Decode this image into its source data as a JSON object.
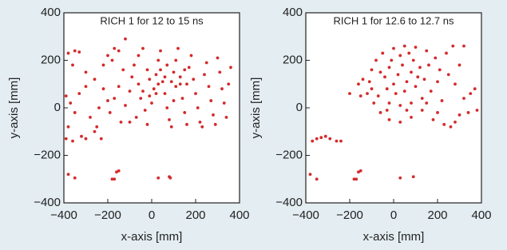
{
  "chart_data": [
    {
      "type": "scatter",
      "title": "RICH 1 for 12 to 15 ns",
      "x_label": "x-axis [mm]",
      "y_label": "y-axis [mm]",
      "color": "#d42a2a",
      "xlim": [
        -400,
        400
      ],
      "ylim": [
        -400,
        400
      ],
      "xticks": [
        {
          "value": -400,
          "label": "−400"
        },
        {
          "value": -200,
          "label": "−200"
        },
        0,
        200,
        400
      ],
      "yticks": [
        {
          "value": -400,
          "label": "−400"
        },
        {
          "value": -200,
          "label": "−200"
        },
        0,
        200,
        400
      ],
      "x": [
        -380,
        -350,
        -330,
        -360,
        -300,
        -390,
        -370,
        -350,
        -380,
        -390,
        -360,
        -320,
        -300,
        -260,
        -230,
        -250,
        -280,
        -240,
        -200,
        -220,
        -260,
        -300,
        -330,
        -220,
        -180,
        -200,
        -170,
        -150,
        -120,
        -130,
        -150,
        -170,
        -190,
        -140,
        -120,
        -100,
        -90,
        -80,
        -60,
        -40,
        -60,
        -50,
        -30,
        -70,
        -100,
        -20,
        0,
        10,
        20,
        30,
        40,
        50,
        60,
        70,
        80,
        90,
        100,
        110,
        120,
        130,
        140,
        150,
        160,
        170,
        180,
        190,
        200,
        210,
        220,
        230,
        240,
        250,
        260,
        270,
        280,
        290,
        300,
        310,
        320,
        330,
        340,
        350,
        360,
        -20,
        -10,
        30,
        40,
        60,
        70,
        90,
        110,
        130,
        150,
        160,
        -40,
        -10,
        20,
        100,
        -380,
        -350,
        -180,
        -160,
        -150,
        -170,
        30,
        80,
        85
      ],
      "values": [
        230,
        240,
        235,
        180,
        150,
        50,
        20,
        -20,
        -80,
        -130,
        -140,
        -120,
        -130,
        -100,
        -130,
        -80,
        -40,
        0,
        30,
        80,
        120,
        90,
        60,
        180,
        200,
        220,
        250,
        240,
        290,
        160,
        90,
        40,
        -20,
        -60,
        10,
        70,
        130,
        180,
        220,
        250,
        100,
        40,
        -10,
        -40,
        -60,
        -70,
        20,
        80,
        140,
        200,
        240,
        110,
        60,
        0,
        -50,
        -80,
        150,
        200,
        250,
        100,
        40,
        -20,
        -70,
        170,
        220,
        120,
        60,
        0,
        -60,
        -80,
        140,
        190,
        90,
        30,
        -30,
        -70,
        210,
        150,
        80,
        20,
        -40,
        100,
        170,
        160,
        120,
        100,
        160,
        130,
        180,
        110,
        90,
        130,
        160,
        100,
        70,
        50,
        60,
        30,
        -280,
        -295,
        -300,
        -270,
        -265,
        -300,
        -295,
        -290,
        -295
      ]
    },
    {
      "type": "scatter",
      "title": "RICH 1 for 12.6 to 12.7 ns",
      "x_label": "x-axis [mm]",
      "y_label": "y-axis [mm]",
      "color": "#d42a2a",
      "xlim": [
        -400,
        400
      ],
      "ylim": [
        -400,
        400
      ],
      "xticks": [
        {
          "value": -400,
          "label": "−400"
        },
        {
          "value": -200,
          "label": "−200"
        },
        0,
        200,
        400
      ],
      "yticks": [
        {
          "value": -400,
          "label": "−400"
        },
        {
          "value": -200,
          "label": "−200"
        },
        0,
        200,
        400
      ],
      "x": [
        -370,
        -350,
        -330,
        -310,
        -290,
        -260,
        -240,
        -380,
        -350,
        -180,
        -160,
        -150,
        -170,
        30,
        90,
        -110,
        -100,
        -80,
        -50,
        0,
        50,
        100,
        150,
        190,
        210,
        200,
        170,
        130,
        80,
        30,
        -20,
        -70,
        -100,
        -120,
        -90,
        -40,
        -20,
        0,
        20,
        40,
        60,
        80,
        100,
        120,
        140,
        -30,
        10,
        50,
        90,
        110,
        30,
        -60,
        160,
        70,
        -10,
        -160,
        -150,
        -60,
        -20,
        30,
        80,
        130,
        180,
        230,
        260,
        280,
        300,
        320,
        340,
        350,
        280,
        250,
        300,
        240,
        320,
        270,
        -30,
        60,
        150,
        220,
        380,
        370,
        -200,
        -140,
        200
      ],
      "values": [
        -140,
        -130,
        -125,
        -120,
        -130,
        -140,
        -140,
        -280,
        -300,
        -300,
        -270,
        -265,
        -300,
        -295,
        -290,
        110,
        160,
        200,
        230,
        250,
        260,
        255,
        240,
        210,
        160,
        110,
        70,
        40,
        20,
        10,
        20,
        50,
        80,
        60,
        20,
        130,
        170,
        100,
        140,
        180,
        110,
        150,
        90,
        170,
        120,
        80,
        60,
        70,
        200,
        130,
        220,
        150,
        180,
        230,
        200,
        100,
        50,
        -20,
        -50,
        -60,
        -40,
        -10,
        -50,
        -70,
        -80,
        -60,
        -30,
        40,
        -20,
        60,
        100,
        140,
        180,
        230,
        260,
        260,
        -10,
        -10,
        20,
        30,
        -10,
        80,
        60,
        120,
        -20
      ]
    }
  ]
}
